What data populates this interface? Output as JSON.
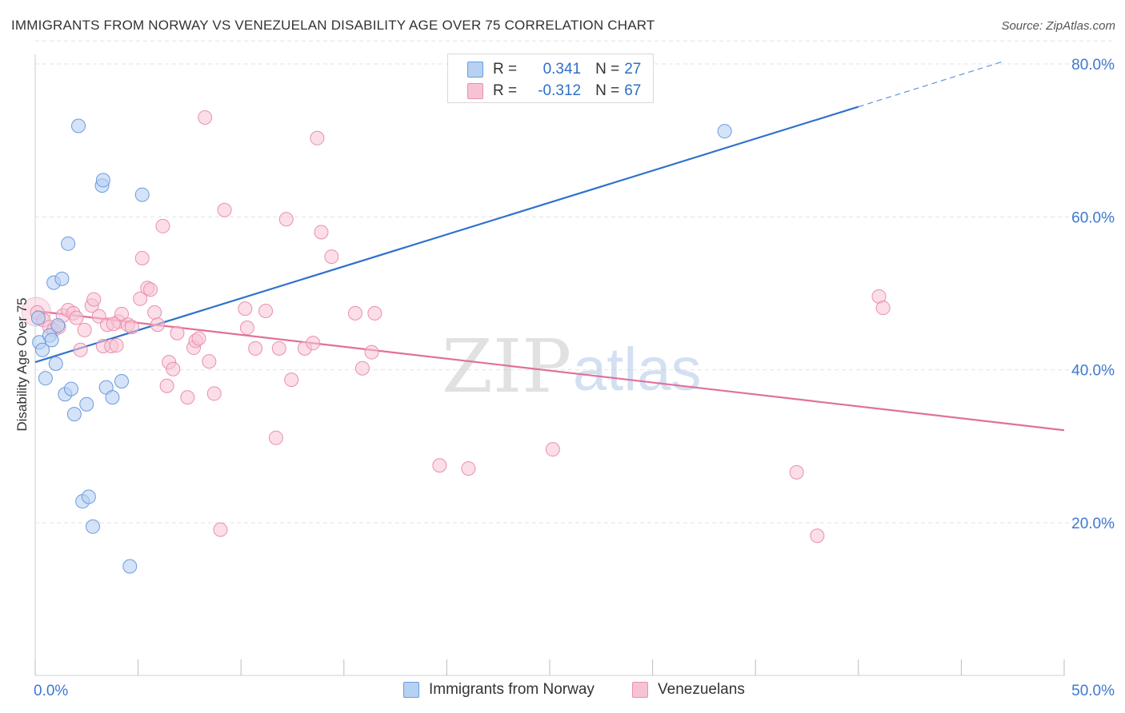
{
  "header": {
    "title": "IMMIGRANTS FROM NORWAY VS VENEZUELAN DISABILITY AGE OVER 75 CORRELATION CHART",
    "source": "Source: ZipAtlas.com"
  },
  "legend": {
    "r_label": "R =",
    "n_label": "N =",
    "rows": [
      {
        "name": "Immigrants from Norway",
        "r": "0.341",
        "n": "27"
      },
      {
        "name": "Venezuelans",
        "r": "-0.312",
        "n": "67"
      }
    ]
  },
  "watermark": {
    "zip": "ZIP",
    "atlas": "atlas"
  },
  "colors": {
    "norway_fill": "#b7d1f2",
    "norway_stroke": "#6b9be0",
    "norway_line": "#2f72cc",
    "venez_fill": "#f7c3d3",
    "venez_stroke": "#ea8fae",
    "venez_line": "#e0709a",
    "grid": "#e3e3e3",
    "tick_label": "#3d78d0"
  },
  "chart_data": {
    "type": "scatter",
    "title": "IMMIGRANTS FROM NORWAY VS VENEZUELAN DISABILITY AGE OVER 75 CORRELATION CHART",
    "xlabel": "",
    "ylabel": "Disability Age Over 75",
    "xlim": [
      0,
      50
    ],
    "ylim": [
      0,
      85
    ],
    "x_tick_labels": [
      {
        "value": 0,
        "label": "0.0%"
      },
      {
        "value": 50,
        "label": "50.0%"
      }
    ],
    "y_tick_labels": [
      {
        "value": 20,
        "label": "20.0%"
      },
      {
        "value": 40,
        "label": "40.0%"
      },
      {
        "value": 60,
        "label": "60.0%"
      },
      {
        "value": 80,
        "label": "80.0%"
      }
    ],
    "y_gridlines": [
      20,
      40,
      60,
      80,
      83
    ],
    "x_minor_ticks": [
      0,
      5,
      10,
      15,
      20,
      25,
      30,
      35,
      40,
      45,
      50
    ],
    "series": [
      {
        "name": "Immigrants from Norway",
        "points": [
          {
            "x": 0.15,
            "y": 46.8
          },
          {
            "x": 0.2,
            "y": 43.6
          },
          {
            "x": 0.35,
            "y": 42.6
          },
          {
            "x": 0.5,
            "y": 38.9
          },
          {
            "x": 0.7,
            "y": 44.5
          },
          {
            "x": 0.8,
            "y": 43.9
          },
          {
            "x": 0.9,
            "y": 51.4
          },
          {
            "x": 1.0,
            "y": 40.8
          },
          {
            "x": 1.1,
            "y": 45.8
          },
          {
            "x": 1.3,
            "y": 51.9
          },
          {
            "x": 1.45,
            "y": 36.8
          },
          {
            "x": 1.6,
            "y": 56.5
          },
          {
            "x": 1.75,
            "y": 37.5
          },
          {
            "x": 1.9,
            "y": 34.2
          },
          {
            "x": 2.1,
            "y": 71.9
          },
          {
            "x": 2.3,
            "y": 22.8
          },
          {
            "x": 2.5,
            "y": 35.5
          },
          {
            "x": 2.6,
            "y": 23.4
          },
          {
            "x": 2.8,
            "y": 19.5
          },
          {
            "x": 3.25,
            "y": 64.1
          },
          {
            "x": 3.3,
            "y": 64.8
          },
          {
            "x": 3.45,
            "y": 37.7
          },
          {
            "x": 3.75,
            "y": 36.4
          },
          {
            "x": 4.2,
            "y": 38.5
          },
          {
            "x": 4.6,
            "y": 14.3
          },
          {
            "x": 5.2,
            "y": 62.9
          },
          {
            "x": 33.5,
            "y": 71.2
          }
        ],
        "trend": {
          "x1": 0,
          "y1": 41.0,
          "x2": 40,
          "y2": 74.4,
          "dashed_to_x": 47,
          "dashed_to_y": 80.3
        }
      },
      {
        "name": "Venezuelans",
        "points": [
          {
            "x": 0.1,
            "y": 47.5
          },
          {
            "x": 0.4,
            "y": 46.5
          },
          {
            "x": 0.7,
            "y": 45.6
          },
          {
            "x": 0.9,
            "y": 45.2
          },
          {
            "x": 1.15,
            "y": 45.6
          },
          {
            "x": 1.35,
            "y": 47.1
          },
          {
            "x": 1.6,
            "y": 47.8
          },
          {
            "x": 1.85,
            "y": 47.4
          },
          {
            "x": 2.0,
            "y": 46.8
          },
          {
            "x": 2.2,
            "y": 42.6
          },
          {
            "x": 2.4,
            "y": 45.2
          },
          {
            "x": 2.75,
            "y": 48.4
          },
          {
            "x": 2.85,
            "y": 49.2
          },
          {
            "x": 3.1,
            "y": 47.0
          },
          {
            "x": 3.3,
            "y": 43.1
          },
          {
            "x": 3.5,
            "y": 45.9
          },
          {
            "x": 3.7,
            "y": 43.1
          },
          {
            "x": 3.95,
            "y": 43.2
          },
          {
            "x": 4.05,
            "y": 46.3
          },
          {
            "x": 4.2,
            "y": 47.3
          },
          {
            "x": 4.5,
            "y": 45.9
          },
          {
            "x": 4.7,
            "y": 45.6
          },
          {
            "x": 5.1,
            "y": 49.3
          },
          {
            "x": 5.2,
            "y": 54.6
          },
          {
            "x": 5.45,
            "y": 50.7
          },
          {
            "x": 5.6,
            "y": 50.5
          },
          {
            "x": 5.8,
            "y": 47.5
          },
          {
            "x": 5.95,
            "y": 45.9
          },
          {
            "x": 6.2,
            "y": 58.8
          },
          {
            "x": 6.4,
            "y": 37.9
          },
          {
            "x": 6.5,
            "y": 41.0
          },
          {
            "x": 6.7,
            "y": 40.1
          },
          {
            "x": 6.9,
            "y": 44.8
          },
          {
            "x": 7.4,
            "y": 36.4
          },
          {
            "x": 7.7,
            "y": 42.9
          },
          {
            "x": 7.8,
            "y": 43.8
          },
          {
            "x": 7.95,
            "y": 44.1
          },
          {
            "x": 8.25,
            "y": 73.0
          },
          {
            "x": 8.45,
            "y": 41.1
          },
          {
            "x": 8.7,
            "y": 36.9
          },
          {
            "x": 9.0,
            "y": 19.1
          },
          {
            "x": 9.2,
            "y": 60.9
          },
          {
            "x": 10.2,
            "y": 48.0
          },
          {
            "x": 10.3,
            "y": 45.5
          },
          {
            "x": 10.7,
            "y": 42.8
          },
          {
            "x": 11.2,
            "y": 47.7
          },
          {
            "x": 11.7,
            "y": 31.1
          },
          {
            "x": 11.85,
            "y": 42.8
          },
          {
            "x": 12.2,
            "y": 59.7
          },
          {
            "x": 12.45,
            "y": 38.7
          },
          {
            "x": 13.1,
            "y": 42.8
          },
          {
            "x": 13.5,
            "y": 43.5
          },
          {
            "x": 13.7,
            "y": 70.3
          },
          {
            "x": 13.9,
            "y": 58.0
          },
          {
            "x": 14.4,
            "y": 54.8
          },
          {
            "x": 15.55,
            "y": 47.4
          },
          {
            "x": 15.9,
            "y": 40.2
          },
          {
            "x": 16.35,
            "y": 42.3
          },
          {
            "x": 16.5,
            "y": 47.4
          },
          {
            "x": 19.65,
            "y": 27.5
          },
          {
            "x": 21.05,
            "y": 27.1
          },
          {
            "x": 25.15,
            "y": 29.6
          },
          {
            "x": 37.0,
            "y": 26.6
          },
          {
            "x": 38.0,
            "y": 18.3
          },
          {
            "x": 41.0,
            "y": 49.6
          },
          {
            "x": 41.2,
            "y": 48.1
          },
          {
            "x": 3.8,
            "y": 46.0
          }
        ],
        "trend": {
          "x1": 0,
          "y1": 47.7,
          "x2": 50,
          "y2": 32.1
        }
      }
    ]
  }
}
